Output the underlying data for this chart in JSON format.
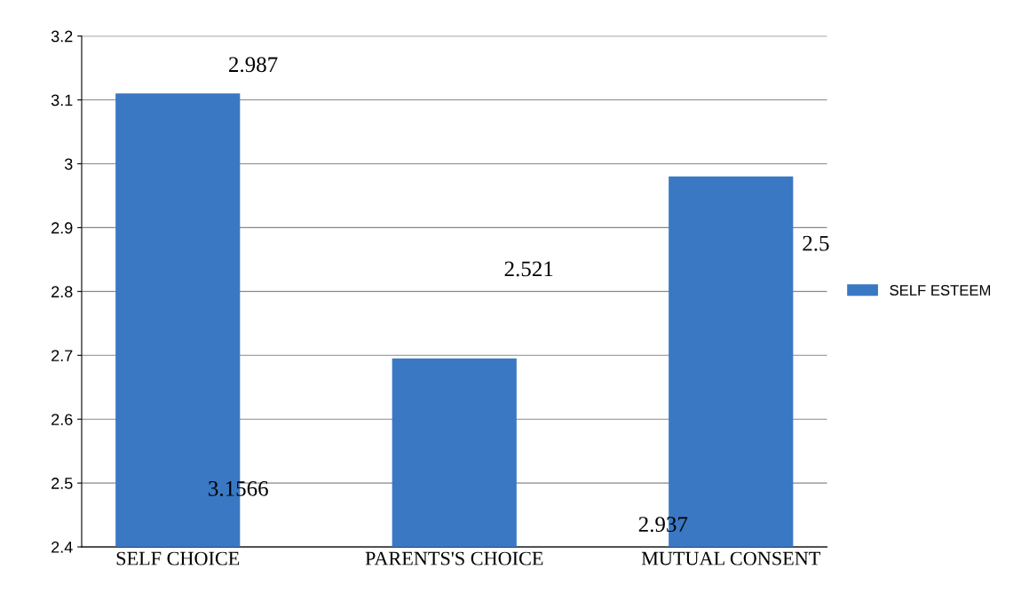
{
  "chart_data": {
    "type": "bar",
    "categories": [
      "SELF CHOICE",
      "PARENTS'S CHOICE",
      "MUTUAL CONSENT"
    ],
    "series": [
      {
        "name": "SELF ESTEEM",
        "color": "#3a78c4",
        "values": [
          3.11,
          2.695,
          2.98
        ]
      }
    ],
    "ylim": [
      2.4,
      3.2
    ],
    "yticks": [
      2.4,
      2.5,
      2.6,
      2.7,
      2.8,
      2.9,
      3,
      3.1,
      3.2
    ],
    "grid": "y",
    "legend": "right",
    "annotations": [
      "2.987",
      "2.521",
      "2.5",
      "3.1566",
      "2.937"
    ]
  }
}
